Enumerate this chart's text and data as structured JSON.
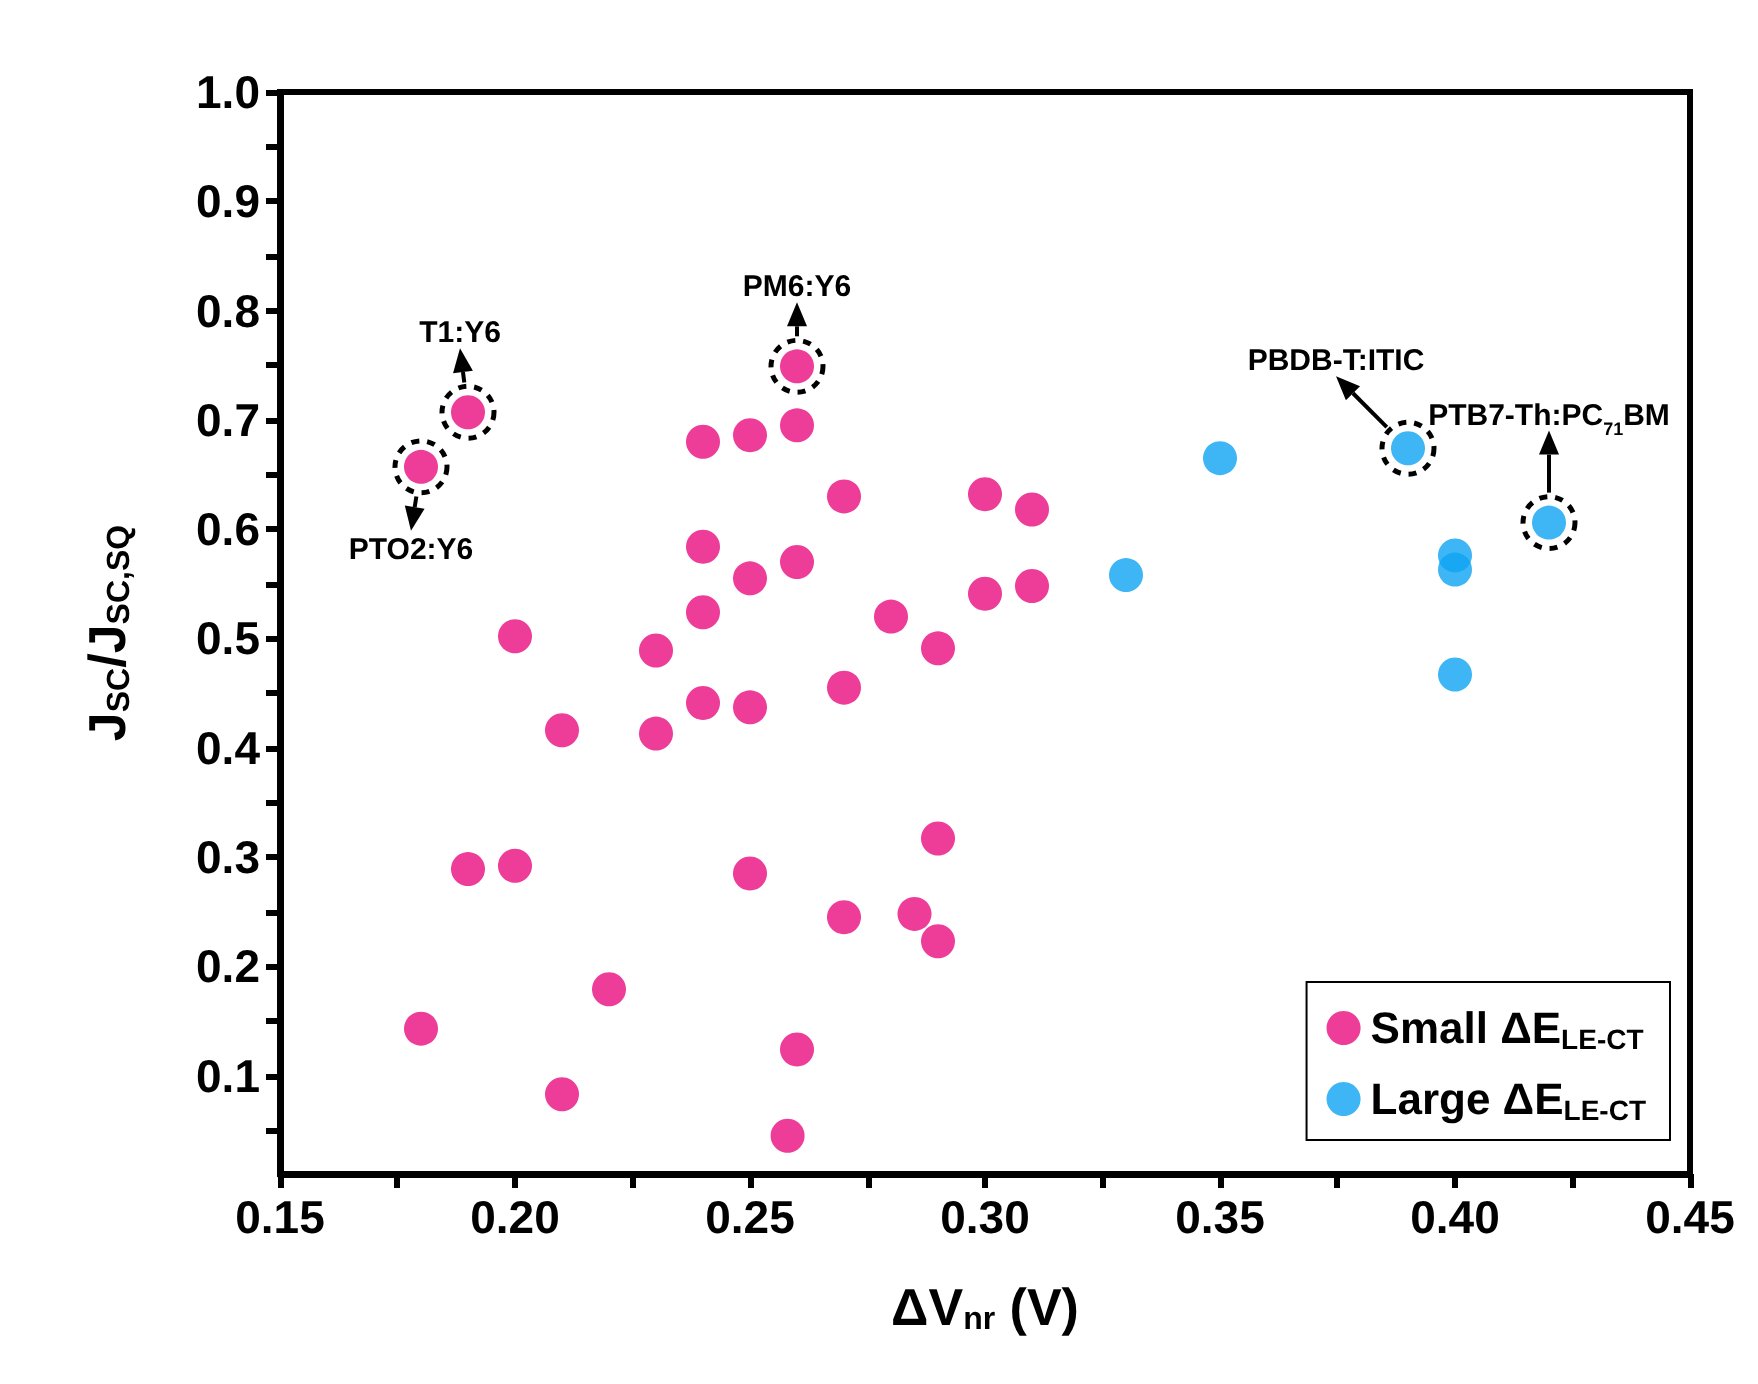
{
  "chart_data": {
    "type": "scatter",
    "xlabel": "ΔV$_{nr}$ (V)",
    "ylabel": "J$_{SC}$/J$_{SC,SQ}$",
    "xlim": [
      0.15,
      0.45
    ],
    "ylim": [
      0.01,
      1.0
    ],
    "xticks": [
      0.15,
      {
        "value": 0.175,
        "label": null
      },
      {
        "value": 0.2,
        "label": "0.20"
      },
      {
        "value": 0.225,
        "label": null
      },
      0.25,
      {
        "value": 0.275,
        "label": null
      },
      {
        "value": 0.3,
        "label": "0.30"
      },
      {
        "value": 0.325,
        "label": null
      },
      0.35,
      {
        "value": 0.375,
        "label": null
      },
      {
        "value": 0.4,
        "label": "0.40"
      },
      {
        "value": 0.425,
        "label": null
      },
      0.45
    ],
    "yticks": [
      {
        "value": 0.05,
        "label": null
      },
      0.1,
      {
        "value": 0.15,
        "label": null
      },
      0.2,
      {
        "value": 0.25,
        "label": null
      },
      0.3,
      {
        "value": 0.35,
        "label": null
      },
      0.4,
      {
        "value": 0.45,
        "label": null
      },
      0.5,
      {
        "value": 0.55,
        "label": null
      },
      0.6,
      {
        "value": 0.65,
        "label": null
      },
      0.7,
      {
        "value": 0.75,
        "label": null
      },
      0.8,
      {
        "value": 0.85,
        "label": null
      },
      0.9,
      {
        "value": 0.95,
        "label": null
      },
      {
        "value": 1,
        "label": "1.0"
      }
    ],
    "grid": false,
    "legend": "bottom right",
    "marker": "circle",
    "series": [
      {
        "name": "Small ΔE$_{LE-CT}$",
        "color": "#ea0b7f",
        "x": [
          0.18,
          0.18,
          0.19,
          0.19,
          0.2,
          0.2,
          0.21,
          0.21,
          0.22,
          0.23,
          0.23,
          0.24,
          0.24,
          0.24,
          0.24,
          0.25,
          0.25,
          0.25,
          0.25,
          0.258,
          0.26,
          0.26,
          0.26,
          0.26,
          0.27,
          0.27,
          0.27,
          0.28,
          0.285,
          0.29,
          0.29,
          0.29,
          0.3,
          0.3,
          0.31,
          0.31
        ],
        "values": [
          0.143,
          0.657,
          0.707,
          0.289,
          0.292,
          0.502,
          0.416,
          0.083,
          0.179,
          0.489,
          0.413,
          0.68,
          0.584,
          0.524,
          0.441,
          0.686,
          0.555,
          0.437,
          0.285,
          0.045,
          0.749,
          0.695,
          0.57,
          0.124,
          0.63,
          0.455,
          0.245,
          0.52,
          0.248,
          0.491,
          0.317,
          0.223,
          0.632,
          0.541,
          0.618,
          0.548
        ]
      },
      {
        "name": "Large ΔE$_{LE-CT}$",
        "color": "#0ea4f2",
        "x": [
          0.33,
          0.35,
          0.39,
          0.4,
          0.4,
          0.4,
          0.42
        ],
        "values": [
          0.558,
          0.665,
          0.674,
          0.576,
          0.563,
          0.467,
          0.606
        ]
      }
    ],
    "annotations": [
      {
        "text": "T1:Y6",
        "x": 0.19,
        "y": 0.707
      },
      {
        "text": "PTO2:Y6",
        "x": 0.18,
        "y": 0.657
      },
      {
        "text": "PM6:Y6",
        "x": 0.26,
        "y": 0.749
      },
      {
        "text": "PBDB-T:ITIC",
        "x": 0.39,
        "y": 0.674
      },
      {
        "text": "PTB7-Th:PC$_{71}$BM",
        "x": 0.42,
        "y": 0.606
      }
    ]
  }
}
